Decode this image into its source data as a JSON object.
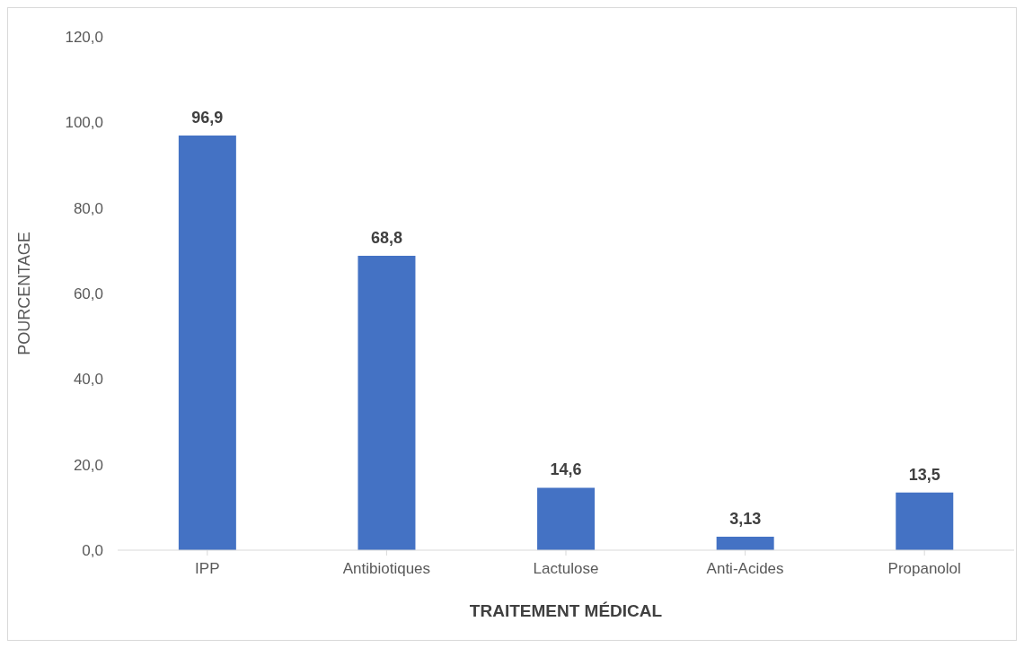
{
  "chart_data": {
    "type": "bar",
    "xlabel": "TRAITEMENT MÉDICAL",
    "ylabel": "POURCENTAGE",
    "categories": [
      "IPP",
      "Antibiotiques",
      "Lactulose",
      "Anti-Acides",
      "Propanolol"
    ],
    "values": [
      96.9,
      68.8,
      14.6,
      3.13,
      13.5
    ],
    "value_labels": [
      "96,9",
      "68,8",
      "14,6",
      "3,13",
      "13,5"
    ],
    "color": "#4472c4",
    "ylim": [
      0,
      120
    ],
    "yticks": [
      {
        "value": 0,
        "label": "0,0"
      },
      {
        "value": 20,
        "label": "20,0"
      },
      {
        "value": 40,
        "label": "40,0"
      },
      {
        "value": 60,
        "label": "60,0"
      },
      {
        "value": 80,
        "label": "80,0"
      },
      {
        "value": 100,
        "label": "100,0"
      },
      {
        "value": 120,
        "label": "120,0"
      }
    ],
    "grid": false,
    "legend": false
  }
}
